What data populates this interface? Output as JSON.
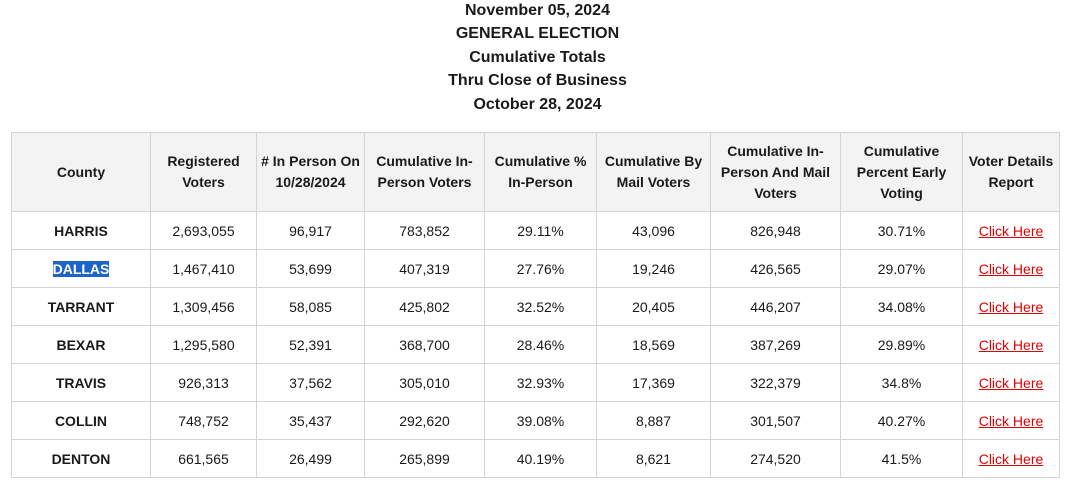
{
  "header": {
    "line1": "November 05, 2024",
    "line2": "GENERAL ELECTION",
    "line3": "Cumulative Totals",
    "line4": "Thru Close of Business",
    "line5": "October 28, 2024"
  },
  "table": {
    "columns": [
      "County",
      "Registered Voters",
      "# In Person On 10/28/2024",
      "Cumulative In-Person Voters",
      "Cumulative % In-Person",
      "Cumulative By Mail Voters",
      "Cumulative In-Person And Mail Voters",
      "Cumulative Percent Early Voting",
      "Voter Details Report"
    ],
    "rows": [
      {
        "county": "HARRIS",
        "registered": "2,693,055",
        "in_person_day": "96,917",
        "cum_in_person": "783,852",
        "cum_pct_in_person": "29.11%",
        "cum_mail": "43,096",
        "cum_total": "826,948",
        "cum_pct_early": "30.71%",
        "report": "Click Here"
      },
      {
        "county": "DALLAS",
        "registered": "1,467,410",
        "in_person_day": "53,699",
        "cum_in_person": "407,319",
        "cum_pct_in_person": "27.76%",
        "cum_mail": "19,246",
        "cum_total": "426,565",
        "cum_pct_early": "29.07%",
        "report": "Click Here"
      },
      {
        "county": "TARRANT",
        "registered": "1,309,456",
        "in_person_day": "58,085",
        "cum_in_person": "425,802",
        "cum_pct_in_person": "32.52%",
        "cum_mail": "20,405",
        "cum_total": "446,207",
        "cum_pct_early": "34.08%",
        "report": "Click Here"
      },
      {
        "county": "BEXAR",
        "registered": "1,295,580",
        "in_person_day": "52,391",
        "cum_in_person": "368,700",
        "cum_pct_in_person": "28.46%",
        "cum_mail": "18,569",
        "cum_total": "387,269",
        "cum_pct_early": "29.89%",
        "report": "Click Here"
      },
      {
        "county": "TRAVIS",
        "registered": "926,313",
        "in_person_day": "37,562",
        "cum_in_person": "305,010",
        "cum_pct_in_person": "32.93%",
        "cum_mail": "17,369",
        "cum_total": "322,379",
        "cum_pct_early": "34.8%",
        "report": "Click Here"
      },
      {
        "county": "COLLIN",
        "registered": "748,752",
        "in_person_day": "35,437",
        "cum_in_person": "292,620",
        "cum_pct_in_person": "39.08%",
        "cum_mail": "8,887",
        "cum_total": "301,507",
        "cum_pct_early": "40.27%",
        "report": "Click Here"
      },
      {
        "county": "DENTON",
        "registered": "661,565",
        "in_person_day": "26,499",
        "cum_in_person": "265,899",
        "cum_pct_in_person": "40.19%",
        "cum_mail": "8,621",
        "cum_total": "274,520",
        "cum_pct_early": "41.5%",
        "report": "Click Here"
      }
    ]
  },
  "colors": {
    "link": "#e00000",
    "selection": "#1e64c8",
    "header_bg": "#f3f3f3",
    "border": "#d4d4d4"
  }
}
